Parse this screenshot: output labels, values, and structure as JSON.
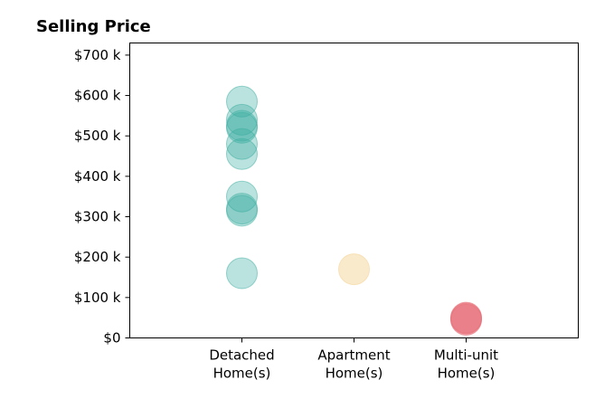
{
  "chart_data": {
    "type": "scatter",
    "title": "Selling Price",
    "xlabel": "",
    "ylabel": "",
    "categories": [
      {
        "line1": "Detached",
        "line2": "Home(s)"
      },
      {
        "line1": "Apartment",
        "line2": "Home(s)"
      },
      {
        "line1": "Multi-unit",
        "line2": "Home(s)"
      }
    ],
    "x_range": [
      -1,
      3
    ],
    "ylim": [
      0,
      730000
    ],
    "y_ticks": [
      {
        "value": 0,
        "label": "$0"
      },
      {
        "value": 100000,
        "label": "$100 k"
      },
      {
        "value": 200000,
        "label": "$200 k"
      },
      {
        "value": 300000,
        "label": "$300 k"
      },
      {
        "value": 400000,
        "label": "$400 k"
      },
      {
        "value": 500000,
        "label": "$500 k"
      },
      {
        "value": 600000,
        "label": "$600 k"
      },
      {
        "value": 700000,
        "label": "$700 k"
      }
    ],
    "grid": false,
    "series": [
      {
        "category_index": 0,
        "color": "#3aada0",
        "opacity": 0.35,
        "values": [
          585000,
          540000,
          525000,
          520000,
          480000,
          455000,
          350000,
          320000,
          315000,
          160000
        ]
      },
      {
        "category_index": 1,
        "color": "#f5d9a3",
        "opacity": 0.55,
        "values": [
          170000
        ]
      },
      {
        "category_index": 2,
        "color": "#e8707a",
        "opacity": 0.5,
        "values": [
          50000,
          48000,
          45000
        ]
      }
    ]
  }
}
